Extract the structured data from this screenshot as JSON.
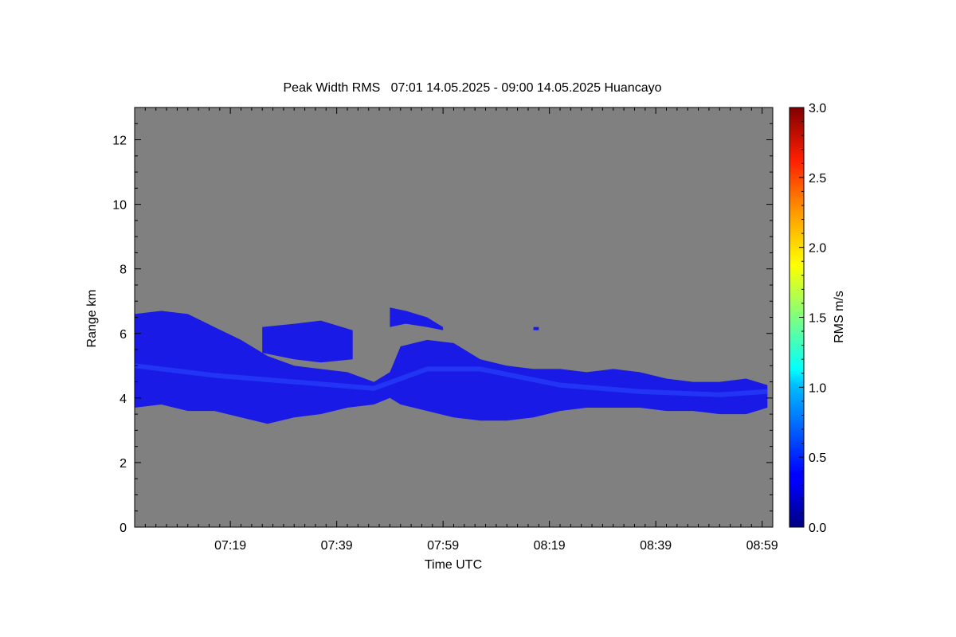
{
  "chart_data": {
    "type": "heatmap",
    "title": "Peak Width RMS   07:01 14.05.2025 - 09:00 14.05.2025 Huancayo",
    "xlabel": "Time UTC",
    "ylabel": "Range km",
    "colorbar_label": "RMS m/s",
    "x_ticks": [
      "07:19",
      "07:39",
      "07:59",
      "08:19",
      "08:39",
      "08:59"
    ],
    "x_tick_minutes": [
      18,
      38,
      58,
      78,
      98,
      118
    ],
    "x_range_minutes": [
      0,
      120
    ],
    "x_start": "07:01",
    "y_ticks": [
      "0",
      "2",
      "4",
      "6",
      "8",
      "10",
      "12"
    ],
    "y_tick_values": [
      0,
      2,
      4,
      6,
      8,
      10,
      12
    ],
    "ylim": [
      0,
      13
    ],
    "colorbar_ticks": [
      "0.0",
      "0.5",
      "1.0",
      "1.5",
      "2.0",
      "2.5",
      "3.0"
    ],
    "colorbar_values": [
      0.0,
      0.5,
      1.0,
      1.5,
      2.0,
      2.5,
      3.0
    ],
    "clim": [
      0,
      3
    ],
    "colormap": "jet",
    "background_color": "#808080",
    "layer_color": "#1a1ae6",
    "main_layer": {
      "time_minutes": [
        0,
        5,
        10,
        15,
        20,
        25,
        30,
        35,
        40,
        45,
        48,
        50,
        55,
        60,
        65,
        70,
        75,
        80,
        85,
        90,
        95,
        100,
        105,
        110,
        115,
        119
      ],
      "top_km": [
        6.6,
        6.7,
        6.6,
        6.2,
        5.8,
        5.3,
        5.0,
        4.9,
        4.8,
        4.5,
        4.8,
        5.6,
        5.8,
        5.7,
        5.2,
        5.0,
        4.9,
        4.9,
        4.8,
        4.9,
        4.8,
        4.6,
        4.5,
        4.5,
        4.6,
        4.4
      ],
      "bottom_km": [
        3.7,
        3.8,
        3.6,
        3.6,
        3.4,
        3.2,
        3.4,
        3.5,
        3.7,
        3.8,
        4.0,
        3.8,
        3.6,
        3.4,
        3.3,
        3.3,
        3.4,
        3.6,
        3.7,
        3.7,
        3.7,
        3.6,
        3.6,
        3.5,
        3.5,
        3.7
      ]
    },
    "upper_patches": [
      {
        "time_minutes": [
          24,
          30,
          35,
          41
        ],
        "top_km": [
          6.2,
          6.3,
          6.4,
          6.1
        ],
        "bottom_km": [
          5.4,
          5.2,
          5.1,
          5.2
        ]
      },
      {
        "time_minutes": [
          48,
          51,
          55,
          58
        ],
        "top_km": [
          6.8,
          6.7,
          6.5,
          6.2
        ],
        "bottom_km": [
          6.2,
          6.3,
          6.2,
          6.1
        ]
      },
      {
        "time_minutes": [
          75,
          76
        ],
        "top_km": [
          6.2,
          6.2
        ],
        "bottom_km": [
          6.1,
          6.1
        ]
      }
    ],
    "enhanced_band": {
      "time_minutes": [
        0,
        15,
        30,
        45,
        55,
        65,
        80,
        95,
        110,
        119
      ],
      "center_km": [
        5.0,
        4.7,
        4.5,
        4.3,
        4.9,
        4.9,
        4.4,
        4.2,
        4.1,
        4.2
      ],
      "value_ms": 0.4
    }
  }
}
